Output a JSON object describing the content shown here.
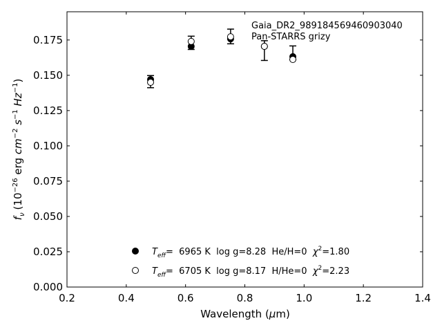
{
  "chart_data": {
    "type": "scatter",
    "xlabel_text": "Wavelength (",
    "xlabel_mu": "μ",
    "xlabel_unit": "m)",
    "ylabel_prefix": "f",
    "ylabel_sub": "ν",
    "ylabel_paren": "(10",
    "ylabel_exp1": "−26",
    "ylabel_erg": " erg ",
    "ylabel_cm": "cm",
    "ylabel_exp2": "−2",
    "ylabel_s": " s",
    "ylabel_exp3": "−1",
    "ylabel_hz": " Hz",
    "ylabel_exp4": "−1",
    "ylabel_close": ")",
    "xlim": [
      0.2,
      1.4
    ],
    "ylim": [
      0.0,
      0.195
    ],
    "xticks": [
      "0.2",
      "0.4",
      "0.6",
      "0.8",
      "1.0",
      "1.2",
      "1.4"
    ],
    "yticks": [
      "0.000",
      "0.025",
      "0.050",
      "0.075",
      "0.100",
      "0.125",
      "0.150",
      "0.175"
    ],
    "annotation_lines": [
      "Gaia_DR2_989184569460903040",
      "Pan-STARRS grizy"
    ],
    "observed": [
      {
        "x": 0.482,
        "y": 0.1455,
        "err": 0.0043
      },
      {
        "x": 0.619,
        "y": 0.173,
        "err": 0.0047
      },
      {
        "x": 0.752,
        "y": 0.1775,
        "err": 0.0052
      },
      {
        "x": 0.866,
        "y": 0.1675,
        "err": 0.007
      },
      {
        "x": 0.962,
        "y": 0.166,
        "err": 0.0048
      }
    ],
    "series": [
      {
        "marker": "filled",
        "label_T": "T",
        "label_eff": "eff",
        "label_rest": "=  6965 K  log g=8.28  He/H=0  ",
        "label_chi": "χ",
        "label_chi_exp": "2",
        "label_chi_val": "=1.80",
        "values": [
          {
            "x": 0.482,
            "y": 0.147
          },
          {
            "x": 0.619,
            "y": 0.1705
          },
          {
            "x": 0.752,
            "y": 0.1758
          },
          {
            "x": 0.866,
            "y": 0.1705
          },
          {
            "x": 0.962,
            "y": 0.1632
          }
        ]
      },
      {
        "marker": "open",
        "label_T": "T",
        "label_eff": "eff",
        "label_rest": "=  6705 K  log g=8.17  H/He=0  ",
        "label_chi": "χ",
        "label_chi_exp": "2",
        "label_chi_val": "=2.23",
        "values": [
          {
            "x": 0.482,
            "y": 0.145
          },
          {
            "x": 0.619,
            "y": 0.174
          },
          {
            "x": 0.752,
            "y": 0.1773
          },
          {
            "x": 0.866,
            "y": 0.1705
          },
          {
            "x": 0.962,
            "y": 0.1612
          }
        ]
      }
    ]
  }
}
